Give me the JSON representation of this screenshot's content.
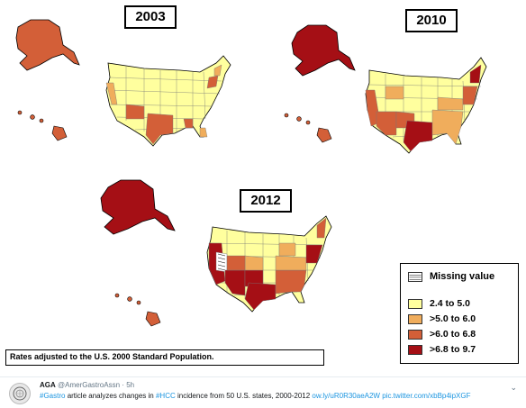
{
  "years": [
    "2003",
    "2010",
    "2012"
  ],
  "colors": {
    "c1": "#ffff9e",
    "c2": "#f0ad5c",
    "c3": "#d35f38",
    "c4": "#a50f15",
    "state_border": "#777777",
    "outline": "#000000"
  },
  "legend": {
    "missing_label": "Missing value",
    "items": [
      {
        "label": "2.4 to 5.0",
        "color": "#ffff9e"
      },
      {
        "label": ">5.0 to 6.0",
        "color": "#f0ad5c"
      },
      {
        "label": ">6.0 to 6.8",
        "color": "#d35f38"
      },
      {
        "label": ">6.8 to 9.7",
        "color": "#a50f15"
      }
    ]
  },
  "note": "Rates adjusted to the U.S. 2000 Standard Population.",
  "tweet": {
    "name": "AGA",
    "handle": "@AmerGastroAssn",
    "sep": "·",
    "time": "5h",
    "hashtag1": "#Gastro",
    "text1": " article analyzes changes in ",
    "hashtag2": "#HCC",
    "text2": " incidence from 50 U.S. states, 2000-2012 ",
    "link1": "ow.ly/uR0R30aeA2W",
    "link2": "pic.twitter.com/xbBp4ipXGF",
    "caret": "⌄"
  }
}
